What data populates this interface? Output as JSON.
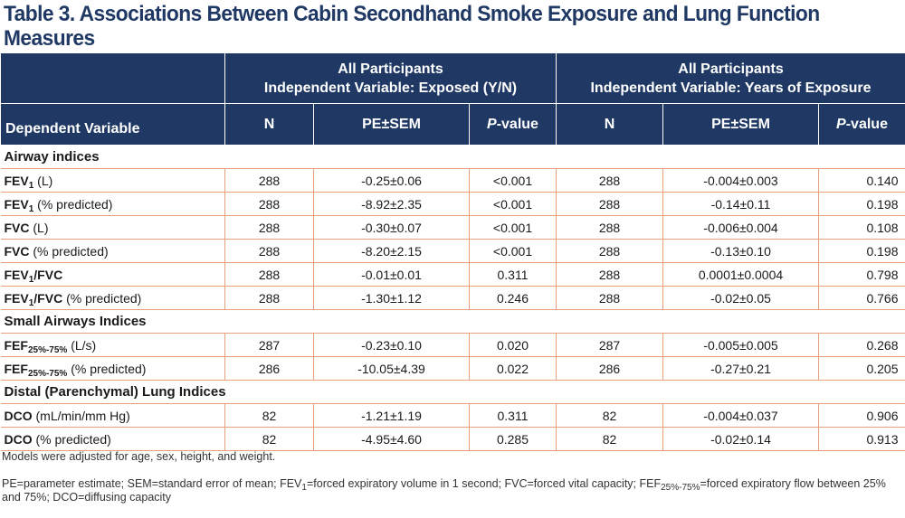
{
  "title": "Table 3. Associations Between Cabin Secondhand Smoke Exposure and Lung Function Measures",
  "header": {
    "group1_line1": "All Participants",
    "group1_line2": "Independent Variable: Exposed (Y/N)",
    "group2_line1": "All Participants",
    "group2_line2": "Independent Variable: Years of Exposure",
    "dependent": "Dependent Variable",
    "n": "N",
    "pe": "PE±SEM",
    "p_italic": "P",
    "p_rest": "-value"
  },
  "sections": [
    {
      "label": "Airway indices",
      "rows": [
        {
          "name": "FEV",
          "sub": "1",
          "unit": " (L)",
          "n1": "288",
          "pe1": "-0.25±0.06",
          "p1": "<0.001",
          "n2": "288",
          "pe2": "-0.004±0.003",
          "p2": "0.140"
        },
        {
          "name": "FEV",
          "sub": "1",
          "unit": " (% predicted)",
          "n1": "288",
          "pe1": "-8.92±2.35",
          "p1": "<0.001",
          "n2": "288",
          "pe2": "-0.14±0.11",
          "p2": "0.198"
        },
        {
          "name": "FVC",
          "sub": "",
          "unit": " (L)",
          "n1": "288",
          "pe1": "-0.30±0.07",
          "p1": "<0.001",
          "n2": "288",
          "pe2": "-0.006±0.004",
          "p2": "0.108"
        },
        {
          "name": "FVC",
          "sub": "",
          "unit": " (% predicted)",
          "n1": "288",
          "pe1": "-8.20±2.15",
          "p1": "<0.001",
          "n2": "288",
          "pe2": "-0.13±0.10",
          "p2": "0.198"
        },
        {
          "name": "FEV",
          "sub": "1",
          "name2": "/FVC",
          "unit": "",
          "n1": "288",
          "pe1": "-0.01±0.01",
          "p1": "0.311",
          "n2": "288",
          "pe2": "0.0001±0.0004",
          "p2": "0.798"
        },
        {
          "name": "FEV",
          "sub": "1",
          "name2": "/FVC",
          "unit": " (% predicted)",
          "n1": "288",
          "pe1": "-1.30±1.12",
          "p1": "0.246",
          "n2": "288",
          "pe2": "-0.02±0.05",
          "p2": "0.766"
        }
      ]
    },
    {
      "label": "Small Airways Indices",
      "rows": [
        {
          "name": "FEF",
          "sub": "25%-75%",
          "unit": " (L/s)",
          "n1": "287",
          "pe1": "-0.23±0.10",
          "p1": "0.020",
          "n2": "287",
          "pe2": "-0.005±0.005",
          "p2": "0.268"
        },
        {
          "name": "FEF",
          "sub": "25%-75%",
          "unit": " (% predicted)",
          "n1": "286",
          "pe1": "-10.05±4.39",
          "p1": "0.022",
          "n2": "286",
          "pe2": "-0.27±0.21",
          "p2": "0.205"
        }
      ]
    },
    {
      "label": "Distal (Parenchymal) Lung Indices",
      "rows": [
        {
          "name": "DCO",
          "sub": "",
          "unit": " (mL/min/mm Hg)",
          "n1": "82",
          "pe1": "-1.21±1.19",
          "p1": "0.311",
          "n2": "82",
          "pe2": "-0.004±0.037",
          "p2": "0.906"
        },
        {
          "name": "DCO",
          "sub": "",
          "unit": " (% predicted)",
          "n1": "82",
          "pe1": "-4.95±4.60",
          "p1": "0.285",
          "n2": "82",
          "pe2": "-0.02±0.14",
          "p2": "0.913"
        }
      ]
    }
  ],
  "notes": {
    "models": "Models were adjusted for age, sex, height, and weight.",
    "abbr_a": "PE=parameter estimate; SEM=standard error of mean; FEV",
    "abbr_a_sub": "1",
    "abbr_b": "=forced expiratory volume in 1 second; FVC=forced vital capacity; FEF",
    "abbr_b_sub": "25%-75%",
    "abbr_c": "=forced expiratory flow between 25% and 75%; DCO=diffusing capacity"
  },
  "colors": {
    "header_bg": "#1f3864",
    "title": "#1f3864",
    "row_rule": "#e8a07c"
  }
}
